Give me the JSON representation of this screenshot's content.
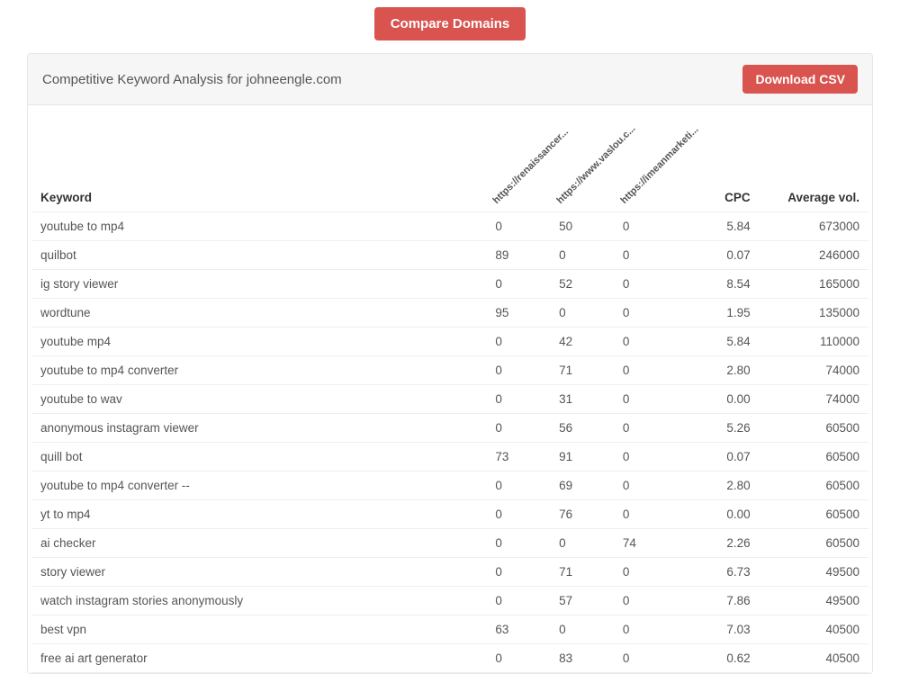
{
  "buttons": {
    "compare": "Compare Domains",
    "download": "Download CSV"
  },
  "panel": {
    "title": "Competitive Keyword Analysis for johneengle.com"
  },
  "table": {
    "headers": {
      "keyword": "Keyword",
      "domain1": "https://renaissancer...",
      "domain2": "https://www.vaslou.c...",
      "domain3": "https://imeanmarketi...",
      "cpc": "CPC",
      "vol": "Average vol."
    },
    "rows": [
      {
        "kw": "youtube to mp4",
        "d1": "0",
        "d2": "50",
        "d3": "0",
        "cpc": "5.84",
        "vol": "673000"
      },
      {
        "kw": "quilbot",
        "d1": "89",
        "d2": "0",
        "d3": "0",
        "cpc": "0.07",
        "vol": "246000"
      },
      {
        "kw": "ig story viewer",
        "d1": "0",
        "d2": "52",
        "d3": "0",
        "cpc": "8.54",
        "vol": "165000"
      },
      {
        "kw": "wordtune",
        "d1": "95",
        "d2": "0",
        "d3": "0",
        "cpc": "1.95",
        "vol": "135000"
      },
      {
        "kw": "youtube mp4",
        "d1": "0",
        "d2": "42",
        "d3": "0",
        "cpc": "5.84",
        "vol": "110000"
      },
      {
        "kw": "youtube to mp4 converter",
        "d1": "0",
        "d2": "71",
        "d3": "0",
        "cpc": "2.80",
        "vol": "74000"
      },
      {
        "kw": "youtube to wav",
        "d1": "0",
        "d2": "31",
        "d3": "0",
        "cpc": "0.00",
        "vol": "74000"
      },
      {
        "kw": "anonymous instagram viewer",
        "d1": "0",
        "d2": "56",
        "d3": "0",
        "cpc": "5.26",
        "vol": "60500"
      },
      {
        "kw": "quill bot",
        "d1": "73",
        "d2": "91",
        "d3": "0",
        "cpc": "0.07",
        "vol": "60500"
      },
      {
        "kw": "youtube to mp4 converter --",
        "d1": "0",
        "d2": "69",
        "d3": "0",
        "cpc": "2.80",
        "vol": "60500"
      },
      {
        "kw": "yt to mp4",
        "d1": "0",
        "d2": "76",
        "d3": "0",
        "cpc": "0.00",
        "vol": "60500"
      },
      {
        "kw": "ai checker",
        "d1": "0",
        "d2": "0",
        "d3": "74",
        "cpc": "2.26",
        "vol": "60500"
      },
      {
        "kw": "story viewer",
        "d1": "0",
        "d2": "71",
        "d3": "0",
        "cpc": "6.73",
        "vol": "49500"
      },
      {
        "kw": "watch instagram stories anonymously",
        "d1": "0",
        "d2": "57",
        "d3": "0",
        "cpc": "7.86",
        "vol": "49500"
      },
      {
        "kw": "best vpn",
        "d1": "63",
        "d2": "0",
        "d3": "0",
        "cpc": "7.03",
        "vol": "40500"
      },
      {
        "kw": "free ai art generator",
        "d1": "0",
        "d2": "83",
        "d3": "0",
        "cpc": "0.62",
        "vol": "40500"
      }
    ]
  }
}
